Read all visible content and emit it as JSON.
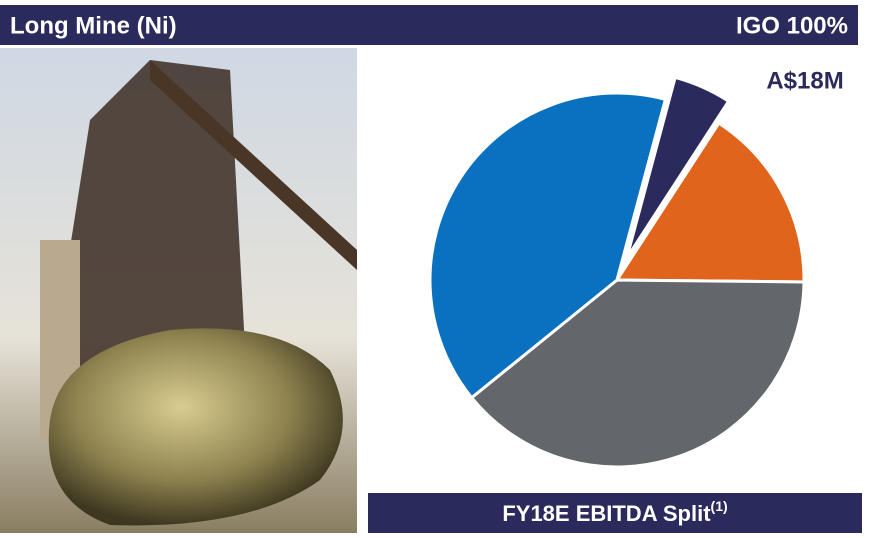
{
  "header": {
    "title": "Long Mine (Ni)",
    "ownership": "IGO 100%"
  },
  "chart_data": {
    "type": "pie",
    "title": "FY18E EBITDA Split",
    "title_note": "(1)",
    "values": [
      5,
      16,
      39,
      40
    ],
    "colors": [
      "#2b2a5c",
      "#e0641c",
      "#63666a",
      "#0a70c0"
    ],
    "exploded": [
      true,
      false,
      false,
      false
    ],
    "annotation": "A$18M"
  }
}
